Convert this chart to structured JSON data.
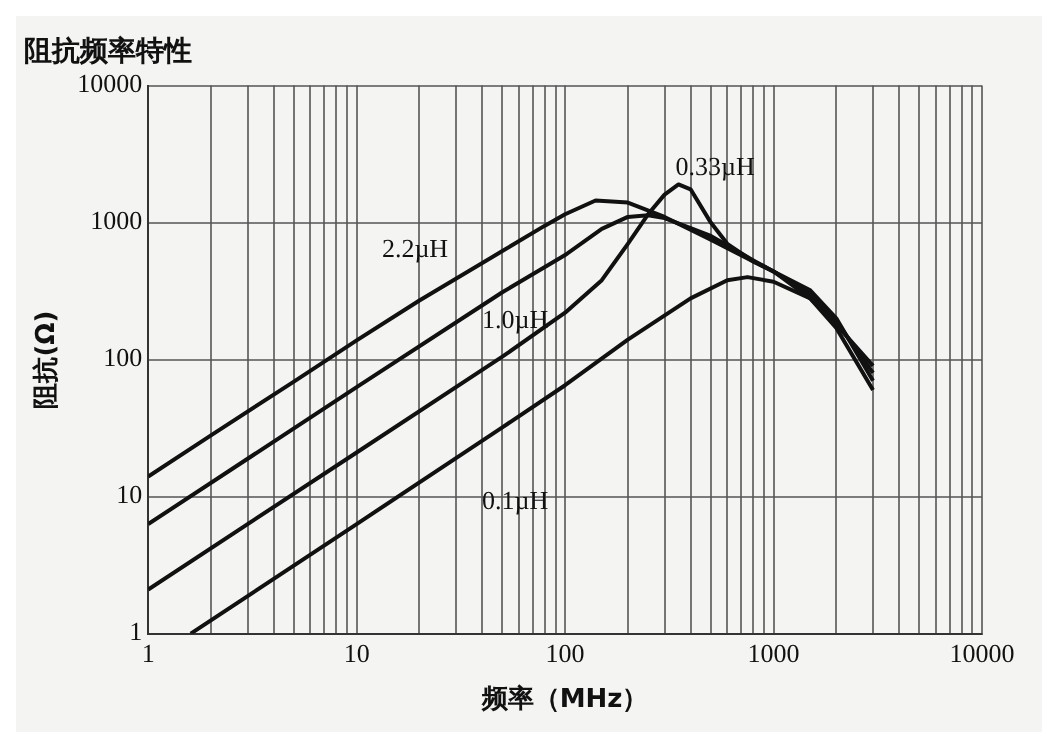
{
  "chart_data": {
    "type": "line",
    "title": "阻抗频率特性",
    "xlabel": "频率（MHz）",
    "ylabel": "阻抗(Ω)",
    "log": "xy",
    "grid": true,
    "marker": "none",
    "line_style": "solid",
    "legend": false,
    "xlim": [
      1,
      10000
    ],
    "ylim": [
      1,
      10000
    ],
    "xticks": [
      1,
      {
        "value": 2,
        "label": null
      },
      {
        "value": 3,
        "label": null
      },
      {
        "value": 4,
        "label": null
      },
      {
        "value": 5,
        "label": null
      },
      {
        "value": 6,
        "label": null
      },
      {
        "value": 7,
        "label": null
      },
      {
        "value": 8,
        "label": null
      },
      {
        "value": 9,
        "label": null
      },
      10,
      {
        "value": 20,
        "label": null
      },
      {
        "value": 30,
        "label": null
      },
      {
        "value": 40,
        "label": null
      },
      {
        "value": 50,
        "label": null
      },
      {
        "value": 60,
        "label": null
      },
      {
        "value": 70,
        "label": null
      },
      {
        "value": 80,
        "label": null
      },
      {
        "value": 90,
        "label": null
      },
      100,
      {
        "value": 200,
        "label": null
      },
      {
        "value": 300,
        "label": null
      },
      {
        "value": 400,
        "label": null
      },
      {
        "value": 500,
        "label": null
      },
      {
        "value": 600,
        "label": null
      },
      {
        "value": 700,
        "label": null
      },
      {
        "value": 800,
        "label": null
      },
      {
        "value": 900,
        "label": null
      },
      1000,
      {
        "value": 2000,
        "label": null
      },
      {
        "value": 3000,
        "label": null
      },
      {
        "value": 4000,
        "label": null
      },
      {
        "value": 5000,
        "label": null
      },
      {
        "value": 6000,
        "label": null
      },
      {
        "value": 7000,
        "label": null
      },
      {
        "value": 8000,
        "label": null
      },
      {
        "value": 9000,
        "label": null
      },
      10000
    ],
    "yticks": [
      1,
      10,
      100,
      1000,
      10000
    ],
    "series": [
      {
        "name": "2.2µH",
        "color": "#111111",
        "x": [
          1,
          2,
          5,
          10,
          20,
          50,
          80,
          100,
          140,
          200,
          300,
          500,
          800,
          1000,
          1500,
          2000,
          3000
        ],
        "values": [
          14,
          28,
          69,
          138,
          270,
          620,
          950,
          1150,
          1450,
          1400,
          1100,
          750,
          520,
          440,
          280,
          180,
          90
        ]
      },
      {
        "name": "1.0µH",
        "color": "#111111",
        "x": [
          1,
          10,
          50,
          100,
          150,
          200,
          250,
          300,
          500,
          800,
          1000,
          1500,
          2000,
          3000
        ],
        "values": [
          6.3,
          63,
          310,
          580,
          900,
          1100,
          1130,
          1080,
          800,
          530,
          440,
          300,
          190,
          80
        ]
      },
      {
        "name": "0.33µH",
        "color": "#111111",
        "x": [
          1,
          10,
          50,
          100,
          150,
          200,
          250,
          300,
          350,
          400,
          500,
          600,
          800,
          1000,
          1500,
          2000,
          3000
        ],
        "values": [
          2.1,
          21,
          105,
          220,
          380,
          700,
          1150,
          1600,
          1900,
          1750,
          1000,
          700,
          520,
          440,
          320,
          200,
          70
        ]
      },
      {
        "name": "0.1µH",
        "color": "#111111",
        "x": [
          1.6,
          10,
          50,
          100,
          200,
          400,
          600,
          750,
          1000,
          1500,
          2000,
          3000
        ],
        "values": [
          1,
          6.3,
          32,
          65,
          140,
          280,
          380,
          400,
          370,
          280,
          170,
          60
        ]
      }
    ]
  }
}
